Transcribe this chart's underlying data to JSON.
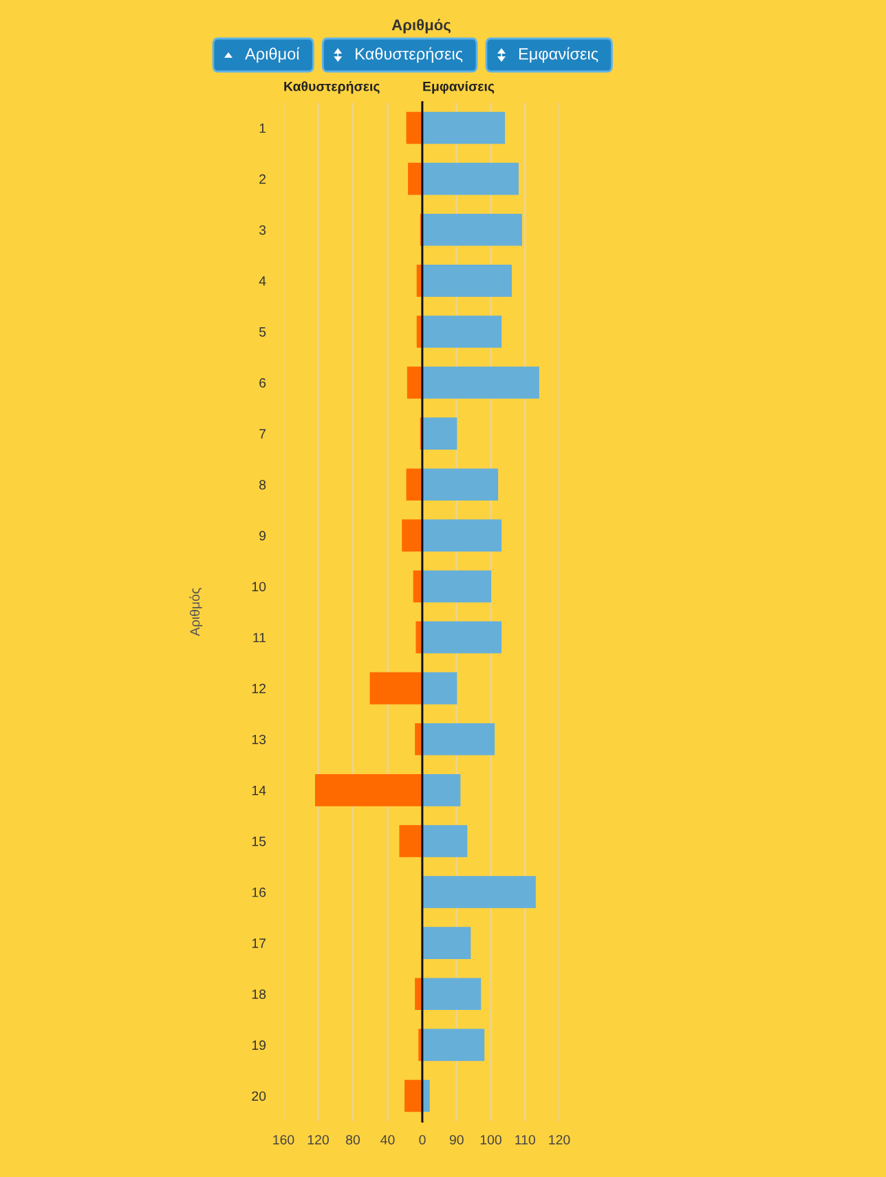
{
  "chart_data": [
    {
      "type": "bar",
      "orientation": "horizontal",
      "title": "Αριθμός",
      "subtitle": "Καθυστερήσεις",
      "ylabel": "Αριθμός",
      "annotations": [
        "Αριθμοί",
        "Καθυστερήσεις",
        "Εμφανίσεις"
      ],
      "categories": [
        "1",
        "2",
        "3",
        "4",
        "5",
        "6",
        "7",
        "8",
        "9",
        "10",
        "11",
        "12",
        "13",
        "14",
        "15",
        "16",
        "17",
        "18",
        "19",
        "20"
      ],
      "values": [
        18,
        16,
        2,
        6,
        6,
        17,
        2,
        18,
        23,
        10,
        7,
        60,
        8,
        123,
        26,
        0,
        0,
        8,
        4,
        20
      ],
      "color": "#ff6a00",
      "xlim": [
        160,
        0
      ],
      "xticks": [
        160,
        120,
        80,
        40,
        0
      ],
      "grid": "x"
    },
    {
      "type": "bar",
      "orientation": "horizontal",
      "subtitle": "Εμφανίσεις",
      "categories": [
        "1",
        "2",
        "3",
        "4",
        "5",
        "6",
        "7",
        "8",
        "9",
        "10",
        "11",
        "12",
        "13",
        "14",
        "15",
        "16",
        "17",
        "18",
        "19",
        "20"
      ],
      "values": [
        104,
        108,
        109,
        106,
        103,
        114,
        90,
        102,
        103,
        100,
        103,
        90,
        101,
        91,
        93,
        113,
        94,
        97,
        98,
        82
      ],
      "color": "#66afd9",
      "xlim": [
        80,
        120
      ],
      "xticks": [
        {
          "value": 80,
          "label": null
        },
        90,
        100,
        110,
        120
      ],
      "grid": "x",
      "tick_labels": "x"
    }
  ]
}
